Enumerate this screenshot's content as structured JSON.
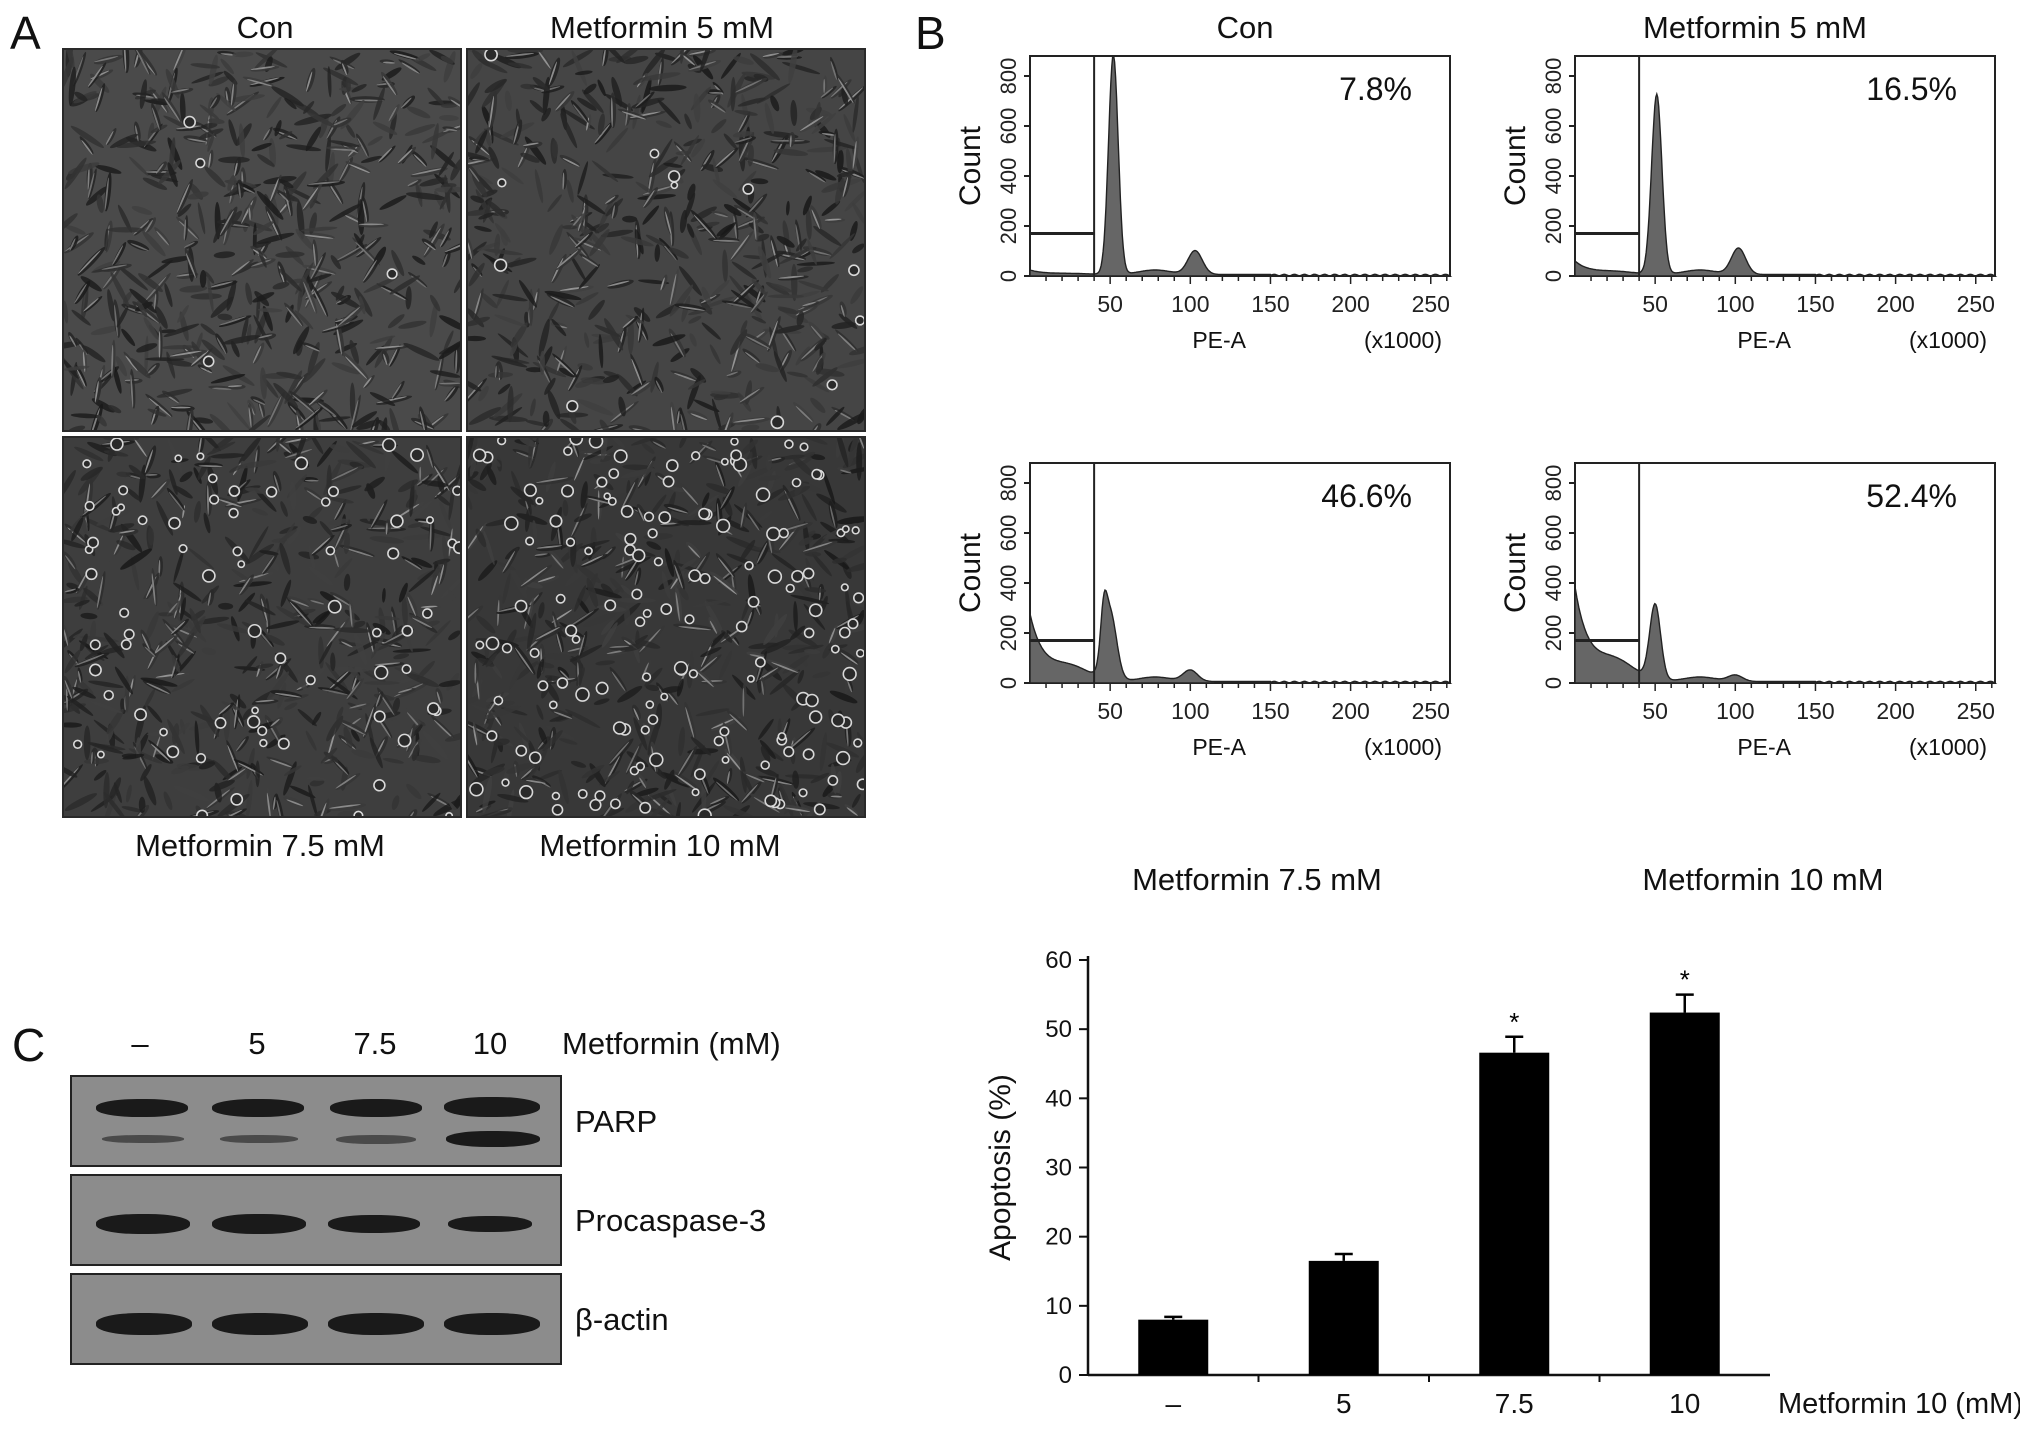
{
  "panelA": {
    "letter": "A",
    "top_labels": [
      "Con",
      "Metformin 5 mM"
    ],
    "bottom_labels": [
      "Metformin 7.5 mM",
      "Metformin 10 mM"
    ]
  },
  "panelB": {
    "letter": "B",
    "top_labels": [
      "Con",
      "Metformin 5 mM"
    ],
    "bottom_labels": [
      "Metformin 7.5 mM",
      "Metformin 10 mM"
    ],
    "histograms": [
      {
        "percent": "7.8%",
        "ylabel": "Count",
        "xlabel": "PE-A",
        "xunit": "(x1000)"
      },
      {
        "percent": "16.5%",
        "ylabel": "Count",
        "xlabel": "PE-A",
        "xunit": "(x1000)"
      },
      {
        "percent": "46.6%",
        "ylabel": "Count",
        "xlabel": "PE-A",
        "xunit": "(x1000)"
      },
      {
        "percent": "52.4%",
        "ylabel": "Count",
        "xlabel": "PE-A",
        "xunit": "(x1000)"
      }
    ],
    "x_ticks": [
      "50",
      "100",
      "150",
      "200",
      "250"
    ],
    "y_ticks": [
      "0",
      "200",
      "400",
      "600",
      "800"
    ]
  },
  "panelC": {
    "letter": "C",
    "lanes": [
      "–",
      "5",
      "7.5",
      "10"
    ],
    "treatment_label": "Metformin (mM)",
    "blots": [
      "PARP",
      "Procaspase-3",
      "β-actin"
    ]
  },
  "chart_data": {
    "type": "bar",
    "categories": [
      "–",
      "5",
      "7.5",
      "10"
    ],
    "values": [
      8,
      16.5,
      46.6,
      52.4
    ],
    "errors": [
      0.4,
      1.0,
      2.3,
      2.6
    ],
    "significance": [
      "",
      "",
      "*",
      "*"
    ],
    "ylabel": "Apoptosis (%)",
    "xlabel": "Metformin 10 (mM)",
    "ylim": [
      0,
      60
    ],
    "y_ticks": [
      "0",
      "10",
      "20",
      "30",
      "40",
      "50",
      "60"
    ]
  }
}
